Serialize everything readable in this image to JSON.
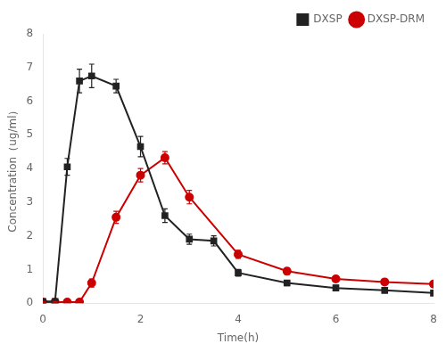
{
  "chart_data": {
    "type": "line",
    "xlabel": "Time(h)",
    "ylabel": "Concentration（ug/ml）",
    "xlim": [
      0,
      8
    ],
    "ylim": [
      0,
      8
    ],
    "xticks": [
      0,
      2,
      4,
      6,
      8
    ],
    "yticks": [
      0,
      1,
      2,
      3,
      4,
      5,
      6,
      7,
      8
    ],
    "grid": false,
    "legend": "upper right",
    "series": [
      {
        "name": "DXSP",
        "color": "#222222",
        "marker": "square",
        "x": [
          0,
          0.25,
          0.5,
          0.75,
          1.0,
          1.5,
          2.0,
          2.5,
          3.0,
          3.5,
          4.0,
          5.0,
          6.0,
          7.0,
          8.0
        ],
        "values": [
          0.05,
          0.05,
          4.05,
          6.6,
          6.75,
          6.45,
          4.65,
          2.6,
          1.9,
          1.85,
          0.9,
          0.6,
          0.45,
          0.38,
          0.3
        ],
        "errors": [
          0.05,
          0.03,
          0.25,
          0.35,
          0.35,
          0.2,
          0.3,
          0.2,
          0.15,
          0.15,
          0.1,
          0.08,
          0.08,
          0.06,
          0.06
        ]
      },
      {
        "name": "DXSP-DRM",
        "color": "#cc0000",
        "marker": "circle",
        "x": [
          0,
          0.25,
          0.5,
          0.75,
          1.0,
          1.5,
          2.0,
          2.5,
          3.0,
          4.0,
          5.0,
          6.0,
          7.0,
          8.0
        ],
        "values": [
          0.03,
          0.03,
          0.03,
          0.03,
          0.6,
          2.55,
          3.8,
          4.32,
          3.15,
          1.45,
          0.95,
          0.72,
          0.63,
          0.57
        ],
        "errors": [
          0.02,
          0.02,
          0.02,
          0.02,
          0.12,
          0.18,
          0.2,
          0.18,
          0.2,
          0.12,
          0.1,
          0.08,
          0.07,
          0.06
        ]
      }
    ]
  }
}
